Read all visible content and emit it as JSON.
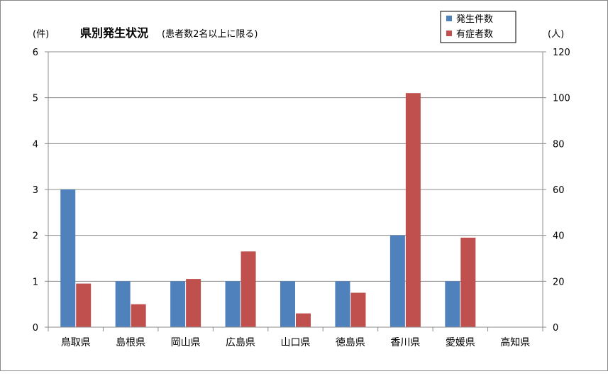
{
  "chart_data": {
    "type": "bar",
    "title": "県別発生状況",
    "subtitle": "(患者数2名以上に限る)",
    "y_left_label": "(件)",
    "y_right_label": "(人)",
    "categories": [
      "鳥取県",
      "島根県",
      "岡山県",
      "広島県",
      "山口県",
      "徳島県",
      "香川県",
      "愛媛県",
      "高知県"
    ],
    "y_left_ticks": [
      "0",
      "1",
      "2",
      "3",
      "4",
      "5",
      "6"
    ],
    "y_right_ticks": [
      "0",
      "20",
      "40",
      "60",
      "80",
      "100",
      "120"
    ],
    "y_left_lim": [
      0,
      6
    ],
    "y_right_lim": [
      0,
      120
    ],
    "grid": true,
    "legend_position": "top-right",
    "series": [
      {
        "name": "発生件数",
        "axis": "left",
        "color": "#4f81bd",
        "values": [
          3,
          1,
          1,
          1,
          1,
          1,
          2,
          1,
          0
        ]
      },
      {
        "name": "有症者数",
        "axis": "right",
        "color": "#c0504d",
        "values": [
          19,
          10,
          21,
          33,
          6,
          15,
          102,
          39,
          0
        ]
      }
    ]
  }
}
